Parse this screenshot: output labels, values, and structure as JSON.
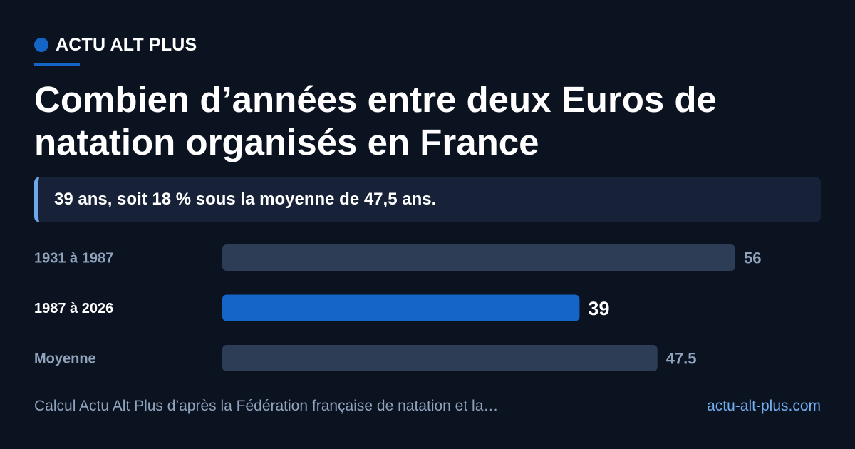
{
  "brand": {
    "name": "ACTU ALT PLUS"
  },
  "headline": {
    "title": "Combien d’années entre deux Euros de natation organisés en France"
  },
  "callout": {
    "text": "39 ans, soit 18 % sous la moyenne de 47,5 ans."
  },
  "footer": {
    "source": "Calcul Actu Alt Plus d’après la Fédération française de natation et la…",
    "site": "actu-alt-plus.com"
  },
  "colors": {
    "accent": "#1565c8",
    "bar_default": "#2d3d56",
    "background": "#0b1220",
    "label_muted": "#8fa3bd",
    "label_highlight": "#ffffff"
  },
  "chart_data": {
    "type": "bar",
    "orientation": "horizontal",
    "categories": [
      "1931 à 1987",
      "1987 à 2026",
      "Moyenne"
    ],
    "values": [
      56,
      39,
      47.5
    ],
    "value_labels": [
      "56",
      "39",
      "47.5"
    ],
    "highlight_index": 1,
    "xlim": [
      0,
      56
    ],
    "title": "",
    "xlabel": "",
    "ylabel": "",
    "grid": false,
    "legend": "none"
  }
}
